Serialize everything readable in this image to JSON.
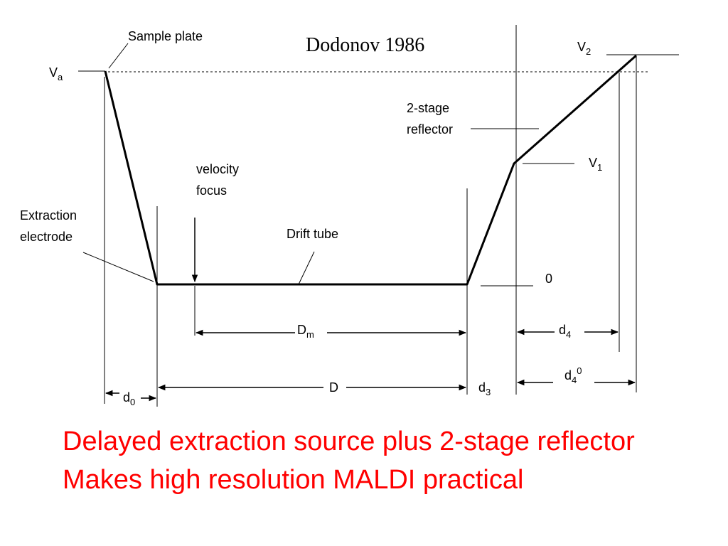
{
  "title": "Dodonov 1986",
  "labels": {
    "sample_plate": "Sample plate",
    "va_main": "V",
    "va_sub": "a",
    "v2_main": "V",
    "v2_sub": "2",
    "v1_main": "V",
    "v1_sub": "1",
    "zero": "0",
    "reflector_line1": "2-stage",
    "reflector_line2": "reflector",
    "velocity_line1": "velocity",
    "velocity_line2": "focus",
    "extraction_line1": "Extraction",
    "extraction_line2": "electrode",
    "drift_tube": "Drift tube",
    "dm_main": "D",
    "dm_sub": "m",
    "d_main": "D",
    "d0_main": "d",
    "d0_sub": "0",
    "d3_main": "d",
    "d3_sub": "3",
    "d4_main": "d",
    "d4_sub": "4",
    "d40_main": "d",
    "d40_sub": "4",
    "d40_sup": "0"
  },
  "caption": {
    "line1": "Delayed extraction source plus 2-stage reflector",
    "line2": "Makes high resolution MALDI practical"
  },
  "colors": {
    "caption": "#ff0000",
    "lines": "#000000"
  }
}
